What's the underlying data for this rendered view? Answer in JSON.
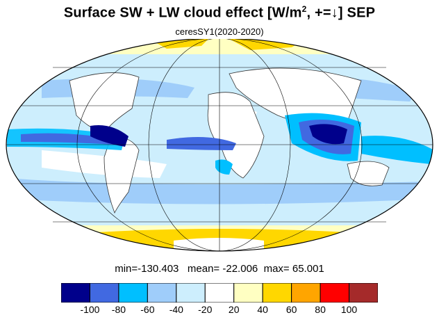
{
  "title": {
    "prefix": "Surface SW + LW cloud effect [W/m",
    "superscript": "2",
    "suffix": ", +=↓]  SEP"
  },
  "subtitle": "ceresSY1(2020-2020)",
  "stats": {
    "min_label": "min=",
    "min": "-130.403",
    "mean_label": "mean=",
    "mean": "-22.006",
    "max_label": "max=",
    "max": "65.001"
  },
  "colorbar": {
    "colors": [
      "#00008b",
      "#4169e1",
      "#00bfff",
      "#9fcdfa",
      "#cdeefd",
      "#ffffff",
      "#ffffc2",
      "#ffd700",
      "#ffa500",
      "#ff0000",
      "#a52a2a"
    ],
    "labels": [
      "-100",
      "-80",
      "-60",
      "-40",
      "-20",
      "20",
      "40",
      "60",
      "80",
      "100"
    ]
  },
  "map": {
    "projection": "mollweide",
    "ocean_color": "#cdeefd",
    "land_color": "#ffffff"
  }
}
